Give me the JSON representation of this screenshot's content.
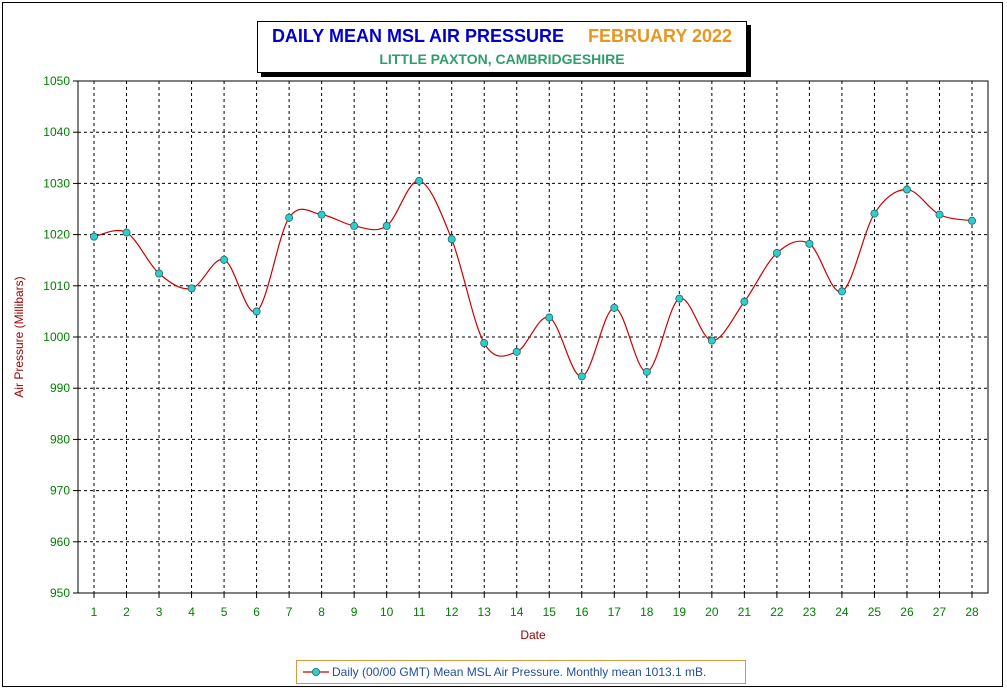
{
  "title": {
    "main": "DAILY MEAN MSL AIR PRESSURE",
    "month": "FEBRUARY 2022",
    "location": "LITTLE PAXTON, CAMBRIDGESHIRE"
  },
  "colors": {
    "title_main": "#0000cc",
    "title_month": "#e8961e",
    "location": "#2e9e6e",
    "line": "#cc0000",
    "marker_fill": "#33cccc",
    "tick_labels": "#008000",
    "axis_titles": "#990000",
    "legend_text": "#1f4e9e",
    "legend_border": "#d89a3a"
  },
  "legend": {
    "text": "Daily (00/00 GMT) Mean MSL Air Pressure. Monthly mean 1013.1 mB."
  },
  "chart_data": {
    "type": "line",
    "title": "DAILY MEAN MSL AIR PRESSURE   FEBRUARY 2022",
    "subtitle": "LITTLE PAXTON, CAMBRIDGESHIRE",
    "xlabel": "Date",
    "ylabel": "Air Pressure (Millibars)",
    "ylim": [
      950,
      1050
    ],
    "ytick_step": 10,
    "grid": true,
    "grid_style": "dashed",
    "legend_position": "bottom",
    "x": [
      1,
      2,
      3,
      4,
      5,
      6,
      7,
      8,
      9,
      10,
      11,
      12,
      13,
      14,
      15,
      16,
      17,
      18,
      19,
      20,
      21,
      22,
      23,
      24,
      25,
      26,
      27,
      28
    ],
    "series": [
      {
        "name": "Daily (00/00 GMT) Mean MSL Air Pressure. Monthly mean 1013.1 mB.",
        "values": [
          1019.6,
          1020.4,
          1012.4,
          1009.5,
          1015.1,
          1005.0,
          1023.3,
          1023.9,
          1021.7,
          1021.7,
          1030.5,
          1019.1,
          998.8,
          997.1,
          1003.8,
          992.3,
          1005.7,
          993.2,
          1007.5,
          999.3,
          1006.9,
          1016.4,
          1018.2,
          1008.9,
          1024.1,
          1028.8,
          1023.9,
          1022.7
        ]
      }
    ]
  }
}
